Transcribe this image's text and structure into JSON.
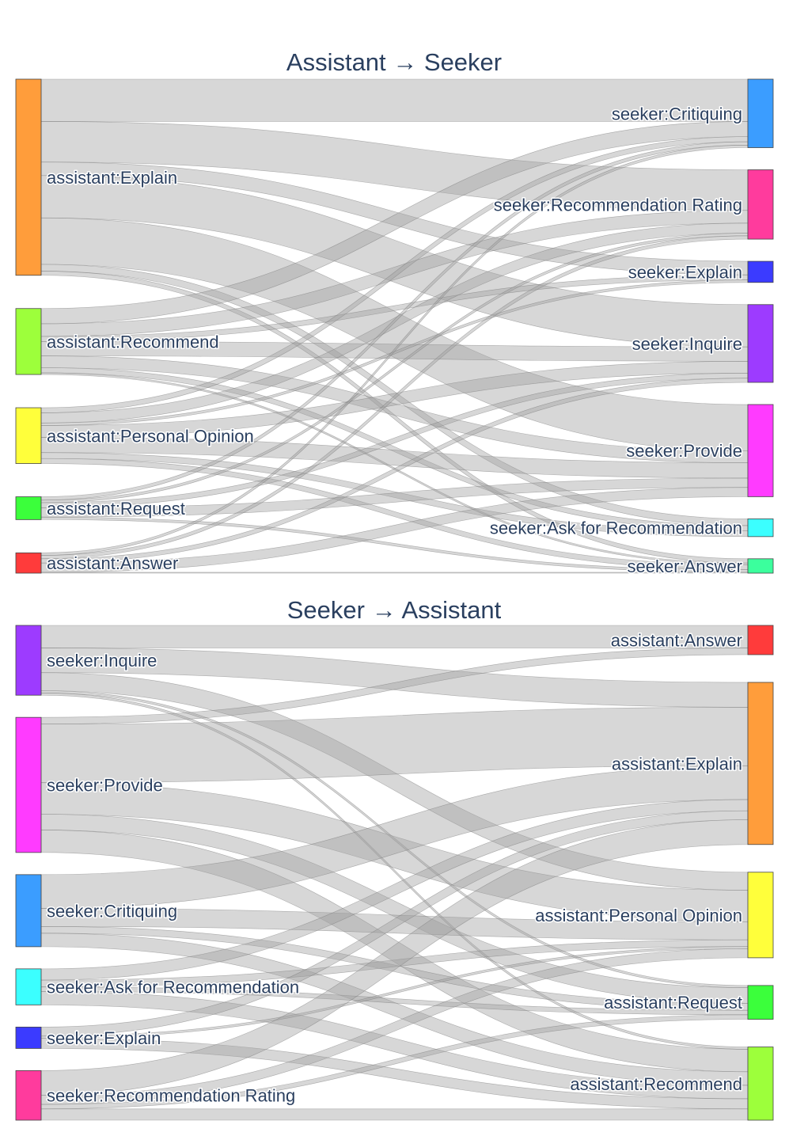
{
  "chart_data": [
    {
      "type": "sankey",
      "title": "Assistant → Seeker",
      "sources": [
        {
          "id": "explain",
          "label": "assistant:Explain",
          "color": "#ff9d3b"
        },
        {
          "id": "recommend",
          "label": "assistant:Recommend",
          "color": "#9dff3b"
        },
        {
          "id": "opinion",
          "label": "assistant:Personal Opinion",
          "color": "#ffff3b"
        },
        {
          "id": "request",
          "label": "assistant:Request",
          "color": "#3bff3b"
        },
        {
          "id": "answer",
          "label": "assistant:Answer",
          "color": "#ff3b3b"
        }
      ],
      "targets": [
        {
          "id": "critiquing",
          "label": "seeker:Critiquing",
          "color": "#3b9dff"
        },
        {
          "id": "rating",
          "label": "seeker:Recommendation Rating",
          "color": "#ff3b9d"
        },
        {
          "id": "sexplain",
          "label": "seeker:Explain",
          "color": "#3b3bff"
        },
        {
          "id": "inquire",
          "label": "seeker:Inquire",
          "color": "#9d3bff"
        },
        {
          "id": "provide",
          "label": "seeker:Provide",
          "color": "#ff3bff"
        },
        {
          "id": "ask",
          "label": "seeker:Ask for Recommendation",
          "color": "#3bffff"
        },
        {
          "id": "sanswer",
          "label": "seeker:Answer",
          "color": "#3bff9d"
        }
      ],
      "links": [
        {
          "source": "explain",
          "target": "critiquing",
          "value": 50
        },
        {
          "source": "explain",
          "target": "rating",
          "value": 48
        },
        {
          "source": "explain",
          "target": "sexplain",
          "value": 16
        },
        {
          "source": "explain",
          "target": "inquire",
          "value": 50
        },
        {
          "source": "explain",
          "target": "provide",
          "value": 55
        },
        {
          "source": "explain",
          "target": "ask",
          "value": 8
        },
        {
          "source": "explain",
          "target": "sanswer",
          "value": 5
        },
        {
          "source": "recommend",
          "target": "critiquing",
          "value": 18
        },
        {
          "source": "recommend",
          "target": "rating",
          "value": 15
        },
        {
          "source": "recommend",
          "target": "sexplain",
          "value": 6
        },
        {
          "source": "recommend",
          "target": "inquire",
          "value": 17
        },
        {
          "source": "recommend",
          "target": "provide",
          "value": 14
        },
        {
          "source": "recommend",
          "target": "ask",
          "value": 6
        },
        {
          "source": "recommend",
          "target": "sanswer",
          "value": 2
        },
        {
          "source": "opinion",
          "target": "critiquing",
          "value": 6
        },
        {
          "source": "opinion",
          "target": "rating",
          "value": 12
        },
        {
          "source": "opinion",
          "target": "sexplain",
          "value": 3
        },
        {
          "source": "opinion",
          "target": "inquire",
          "value": 14
        },
        {
          "source": "opinion",
          "target": "provide",
          "value": 18
        },
        {
          "source": "opinion",
          "target": "ask",
          "value": 7
        },
        {
          "source": "opinion",
          "target": "sanswer",
          "value": 6
        },
        {
          "source": "request",
          "target": "critiquing",
          "value": 4
        },
        {
          "source": "request",
          "target": "rating",
          "value": 3
        },
        {
          "source": "request",
          "target": "inquire",
          "value": 6
        },
        {
          "source": "request",
          "target": "provide",
          "value": 11
        },
        {
          "source": "request",
          "target": "sanswer",
          "value": 3
        },
        {
          "source": "answer",
          "target": "critiquing",
          "value": 3
        },
        {
          "source": "answer",
          "target": "rating",
          "value": 4
        },
        {
          "source": "answer",
          "target": "inquire",
          "value": 5
        },
        {
          "source": "answer",
          "target": "provide",
          "value": 11
        },
        {
          "source": "answer",
          "target": "sanswer",
          "value": 1
        }
      ]
    },
    {
      "type": "sankey",
      "title": "Seeker → Assistant",
      "sources": [
        {
          "id": "inquire",
          "label": "seeker:Inquire",
          "color": "#9d3bff"
        },
        {
          "id": "provide",
          "label": "seeker:Provide",
          "color": "#ff3bff"
        },
        {
          "id": "critiquing",
          "label": "seeker:Critiquing",
          "color": "#3b9dff"
        },
        {
          "id": "ask",
          "label": "seeker:Ask for Recommendation",
          "color": "#3bffff"
        },
        {
          "id": "sexplain",
          "label": "seeker:Explain",
          "color": "#3b3bff"
        },
        {
          "id": "rating",
          "label": "seeker:Recommendation Rating",
          "color": "#ff3b9d"
        }
      ],
      "targets": [
        {
          "id": "answer",
          "label": "assistant:Answer",
          "color": "#ff3b3b"
        },
        {
          "id": "explain",
          "label": "assistant:Explain",
          "color": "#ff9d3b"
        },
        {
          "id": "opinion",
          "label": "assistant:Personal Opinion",
          "color": "#ffff3b"
        },
        {
          "id": "request",
          "label": "assistant:Request",
          "color": "#3bff3b"
        },
        {
          "id": "recommend",
          "label": "assistant:Recommend",
          "color": "#9dff3b"
        }
      ],
      "links": [
        {
          "source": "inquire",
          "target": "answer",
          "value": 20
        },
        {
          "source": "inquire",
          "target": "explain",
          "value": 22
        },
        {
          "source": "inquire",
          "target": "opinion",
          "value": 16
        },
        {
          "source": "inquire",
          "target": "request",
          "value": 2
        },
        {
          "source": "inquire",
          "target": "recommend",
          "value": 2
        },
        {
          "source": "provide",
          "target": "answer",
          "value": 6
        },
        {
          "source": "provide",
          "target": "explain",
          "value": 52
        },
        {
          "source": "provide",
          "target": "opinion",
          "value": 28
        },
        {
          "source": "provide",
          "target": "request",
          "value": 14
        },
        {
          "source": "provide",
          "target": "recommend",
          "value": 20
        },
        {
          "source": "critiquing",
          "target": "explain",
          "value": 30
        },
        {
          "source": "critiquing",
          "target": "opinion",
          "value": 16
        },
        {
          "source": "critiquing",
          "target": "request",
          "value": 6
        },
        {
          "source": "critiquing",
          "target": "recommend",
          "value": 12
        },
        {
          "source": "ask",
          "target": "explain",
          "value": 10
        },
        {
          "source": "ask",
          "target": "opinion",
          "value": 6
        },
        {
          "source": "ask",
          "target": "request",
          "value": 4
        },
        {
          "source": "ask",
          "target": "recommend",
          "value": 12
        },
        {
          "source": "sexplain",
          "target": "explain",
          "value": 8
        },
        {
          "source": "sexplain",
          "target": "opinion",
          "value": 2
        },
        {
          "source": "sexplain",
          "target": "recommend",
          "value": 9
        },
        {
          "source": "rating",
          "target": "explain",
          "value": 22
        },
        {
          "source": "rating",
          "target": "opinion",
          "value": 8
        },
        {
          "source": "rating",
          "target": "request",
          "value": 4
        },
        {
          "source": "rating",
          "target": "recommend",
          "value": 10
        }
      ]
    }
  ]
}
